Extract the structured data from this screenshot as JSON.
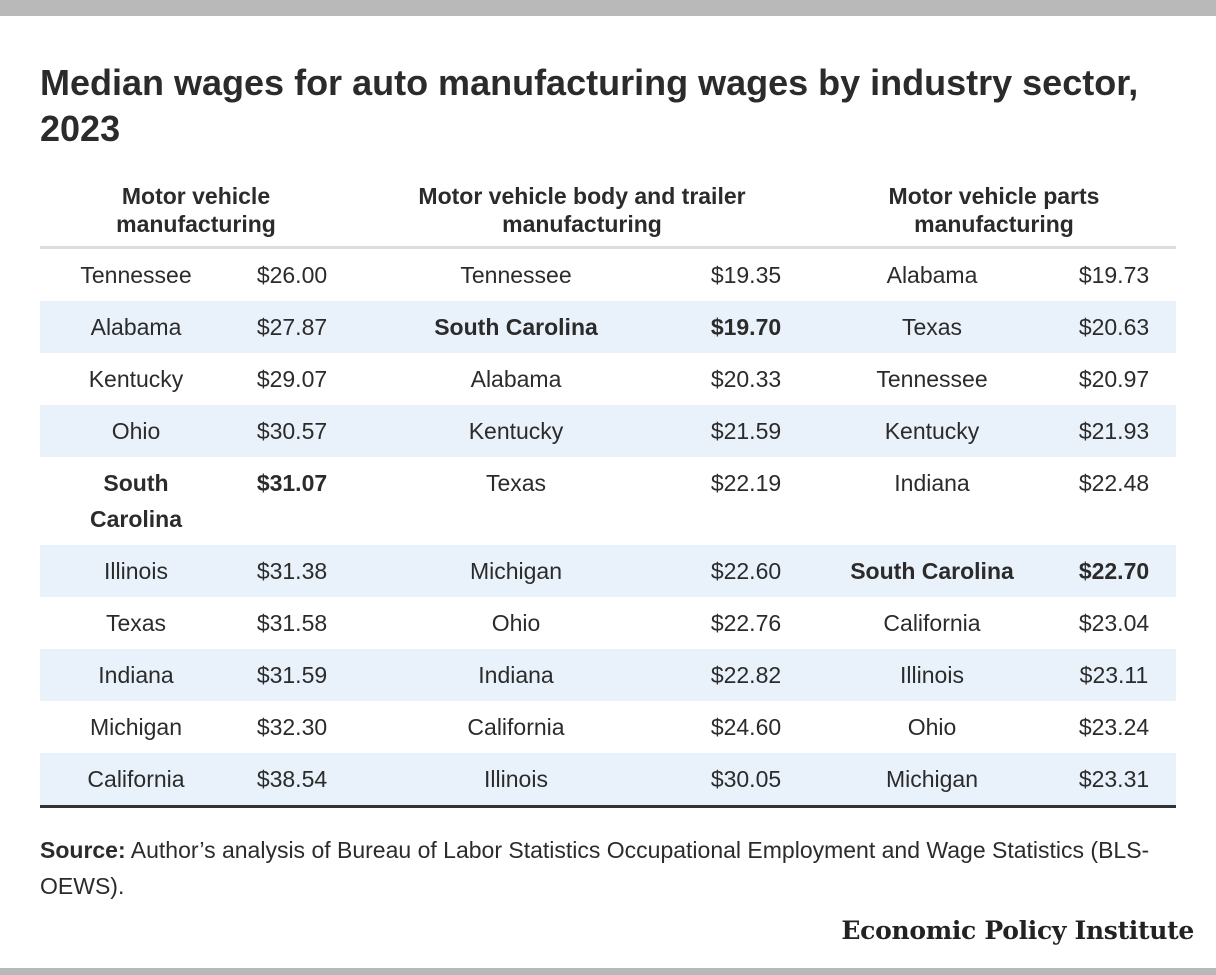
{
  "title": "Median wages for auto manufacturing wages by industry sector, 2023",
  "table": {
    "headers": [
      "Motor vehicle manufacturing",
      "Motor vehicle body and trailer manufacturing",
      "Motor vehicle parts manufacturing"
    ],
    "rows": [
      [
        [
          "Tennessee",
          "$26.00"
        ],
        [
          "Tennessee",
          "$19.35"
        ],
        [
          "Alabama",
          "$19.73"
        ]
      ],
      [
        [
          "Alabama",
          "$27.87"
        ],
        [
          "South Carolina",
          "$19.70"
        ],
        [
          "Texas",
          "$20.63"
        ]
      ],
      [
        [
          "Kentucky",
          "$29.07"
        ],
        [
          "Alabama",
          "$20.33"
        ],
        [
          "Tennessee",
          "$20.97"
        ]
      ],
      [
        [
          "Ohio",
          "$30.57"
        ],
        [
          "Kentucky",
          "$21.59"
        ],
        [
          "Kentucky",
          "$21.93"
        ]
      ],
      [
        [
          "South Carolina",
          "$31.07"
        ],
        [
          "Texas",
          "$22.19"
        ],
        [
          "Indiana",
          "$22.48"
        ]
      ],
      [
        [
          "Illinois",
          "$31.38"
        ],
        [
          "Michigan",
          "$22.60"
        ],
        [
          "South Carolina",
          "$22.70"
        ]
      ],
      [
        [
          "Texas",
          "$31.58"
        ],
        [
          "Ohio",
          "$22.76"
        ],
        [
          "California",
          "$23.04"
        ]
      ],
      [
        [
          "Indiana",
          "$31.59"
        ],
        [
          "Indiana",
          "$22.82"
        ],
        [
          "Illinois",
          "$23.11"
        ]
      ],
      [
        [
          "Michigan",
          "$32.30"
        ],
        [
          "California",
          "$24.60"
        ],
        [
          "Ohio",
          "$23.24"
        ]
      ],
      [
        [
          "California",
          "$38.54"
        ],
        [
          "Illinois",
          "$30.05"
        ],
        [
          "Michigan",
          "$23.31"
        ]
      ]
    ],
    "highlight_state": "South Carolina",
    "shade_color": "#e9f1fa"
  },
  "source": {
    "label": "Source:",
    "text": " Author’s analysis of Bureau of Labor Statistics Occupational Employment and Wage Statistics (BLS-OEWS)."
  },
  "brand": "Economic Policy Institute"
}
